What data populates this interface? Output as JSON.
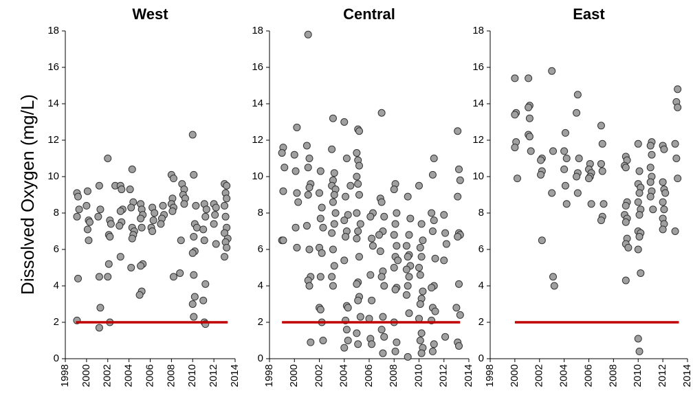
{
  "chart_data": [
    {
      "type": "scatter",
      "title": "West",
      "ylabel": "Dissolved Oxygen  (mg/L)",
      "xlim": [
        1998,
        2014
      ],
      "xticks": [
        1998,
        2000,
        2002,
        2004,
        2006,
        2008,
        2010,
        2012,
        2014
      ],
      "ylim": [
        0,
        18
      ],
      "yticks": [
        0,
        2,
        4,
        6,
        8,
        10,
        12,
        14,
        16,
        18
      ],
      "series": [
        {
          "type": "scatter",
          "color": "#a0a0a0",
          "x": [
            1999.1,
            1999.2,
            1999.1,
            1999.3,
            1999.2,
            1999.1,
            2000.1,
            2000.0,
            2000.2,
            2000.3,
            2000.1,
            2000.2,
            2001.2,
            2001.3,
            2001.1,
            2001.2,
            2001.3,
            2001.2,
            2002.0,
            2002.7,
            2002.2,
            2002.3,
            2002.1,
            2002.2,
            2002.1,
            2002.0,
            2002.2,
            2003.2,
            2003.3,
            2003.4,
            2003.2,
            2003.3,
            2003.1,
            2003.2,
            2004.3,
            2004.1,
            2004.4,
            2004.2,
            2004.3,
            2004.5,
            2004.4,
            2004.3,
            2004.2,
            2005.1,
            2005.2,
            2005.3,
            2005.1,
            2005.2,
            2005.3,
            2005.1,
            2005.2,
            2005.0,
            2006.2,
            2006.4,
            2006.3,
            2006.1,
            2006.2,
            2007.2,
            2007.3,
            2007.1,
            2007.0,
            2008.0,
            2008.2,
            2008.1,
            2008.0,
            2008.2,
            2008.1,
            2008.2,
            2009.0,
            2009.2,
            2009.1,
            2009.3,
            2009.2,
            2008.9,
            2008.8,
            2010.0,
            2010.1,
            2010.3,
            2010.2,
            2010.4,
            2010.1,
            2010.2,
            2010.0,
            2010.1,
            2010.2,
            2010.0,
            2010.1,
            2011.1,
            2011.3,
            2011.2,
            2011.0,
            2011.1,
            2011.2,
            2011.0,
            2011.1,
            2011.2,
            2012.0,
            2012.2,
            2012.1,
            2012.0,
            2012.2,
            2013.0,
            2013.2,
            2013.1,
            2013.2,
            2013.0,
            2013.1,
            2013.2,
            2013.0,
            2013.3,
            2013.1,
            2013.2,
            2013.0
          ],
          "y": [
            9.1,
            8.9,
            7.8,
            8.2,
            4.4,
            2.1,
            9.2,
            8.4,
            7.6,
            7.5,
            7.1,
            6.5,
            9.5,
            8.2,
            7.8,
            4.5,
            2.8,
            1.7,
            11.0,
            9.5,
            7.6,
            7.4,
            6.8,
            6.7,
            5.2,
            4.5,
            2.0,
            9.5,
            9.3,
            8.2,
            8.1,
            7.5,
            7.3,
            5.6,
            10.4,
            9.3,
            8.6,
            8.3,
            7.2,
            7.0,
            6.8,
            6.6,
            5.0,
            8.5,
            8.2,
            7.9,
            7.7,
            7.2,
            5.2,
            5.1,
            3.7,
            3.5,
            8.3,
            8.0,
            7.6,
            7.2,
            7.0,
            8.4,
            7.9,
            7.7,
            7.4,
            10.1,
            9.9,
            8.8,
            8.5,
            8.3,
            8.1,
            4.5,
            9.6,
            9.3,
            9.0,
            8.8,
            8.5,
            6.5,
            4.7,
            12.3,
            10.1,
            8.4,
            7.4,
            7.2,
            6.7,
            5.9,
            5.8,
            4.6,
            3.4,
            3.0,
            2.3,
            8.5,
            8.2,
            7.8,
            7.1,
            6.5,
            4.1,
            3.2,
            2.0,
            1.9,
            8.5,
            8.3,
            7.9,
            7.4,
            6.3,
            9.6,
            9.5,
            9.1,
            8.8,
            8.4,
            7.8,
            7.2,
            6.9,
            6.6,
            6.4,
            6.1,
            5.6
          ]
        },
        {
          "type": "line",
          "color": "#c00000",
          "x": [
            1999,
            2013.3
          ],
          "y": [
            2,
            2
          ]
        }
      ]
    },
    {
      "type": "scatter",
      "title": "Central",
      "xlim": [
        1998,
        2014
      ],
      "xticks": [
        1998,
        2000,
        2002,
        2004,
        2006,
        2008,
        2010,
        2012,
        2014
      ],
      "ylim": [
        0,
        18
      ],
      "yticks": [
        0,
        2,
        4,
        6,
        8,
        10,
        12,
        14,
        16,
        18
      ],
      "series": [
        {
          "type": "scatter",
          "color": "#a0a0a0",
          "x": [
            1999.1,
            1999.0,
            1999.2,
            1999.1,
            1999.0,
            1999.1,
            2000.2,
            2000.0,
            2000.1,
            2000.2,
            2000.3,
            2000.1,
            2000.2,
            2001.1,
            2001.0,
            2001.2,
            2001.1,
            2001.3,
            2001.2,
            2001.1,
            2001.0,
            2001.2,
            2001.3,
            2001.1,
            2001.2,
            2001.3,
            2002.1,
            2002.0,
            2002.2,
            2002.1,
            2002.3,
            2002.0,
            2002.2,
            2002.1,
            2002.0,
            2002.1,
            2002.2,
            2002.3,
            2003.1,
            2003.0,
            2003.2,
            2003.1,
            2003.0,
            2003.3,
            2003.2,
            2003.1,
            2003.3,
            2003.2,
            2003.0,
            2003.1,
            2003.2,
            2003.0,
            2003.1,
            2004.0,
            2004.2,
            2004.5,
            2004.1,
            2004.3,
            2004.0,
            2004.2,
            2004.1,
            2004.0,
            2004.2,
            2004.3,
            2004.1,
            2004.2,
            2004.3,
            2004.0,
            2005.1,
            2005.2,
            2005.0,
            2005.1,
            2005.2,
            2005.0,
            2005.1,
            2005.2,
            2005.0,
            2005.3,
            2005.1,
            2005.0,
            2005.2,
            2005.1,
            2005.0,
            2005.2,
            2005.1,
            2005.3,
            2005.0,
            2005.1,
            2006.3,
            2006.1,
            2006.2,
            2006.3,
            2006.1,
            2006.2,
            2006.0,
            2006.1,
            2006.2,
            2007.0,
            2006.9,
            2007.0,
            2007.2,
            2007.1,
            2006.8,
            2006.9,
            2007.1,
            2007.0,
            2007.2,
            2007.1,
            2007.0,
            2007.2,
            2007.1,
            2008.1,
            2008.0,
            2008.2,
            2008.1,
            2008.0,
            2008.2,
            2008.1,
            2008.3,
            2008.0,
            2008.2,
            2008.1,
            2008.0,
            2008.2,
            2008.1,
            2009.1,
            2009.3,
            2009.2,
            2009.0,
            2009.2,
            2009.1,
            2009.3,
            2009.0,
            2009.2,
            2009.1,
            2009.0,
            2009.2,
            2009.1,
            2010.0,
            2010.2,
            2010.3,
            2010.1,
            2010.2,
            2010.0,
            2010.1,
            2010.3,
            2010.2,
            2010.1,
            2010.0,
            2010.2,
            2010.1,
            2010.3,
            2010.2,
            2011.2,
            2011.1,
            2011.0,
            2011.2,
            2011.1,
            2011.3,
            2011.2,
            2011.0,
            2011.1,
            2011.3,
            2011.0,
            2011.2,
            2011.1,
            2012.0,
            2012.1,
            2012.2,
            2012.0,
            2012.1,
            2013.1,
            2013.2,
            2013.3,
            2013.1,
            2013.2,
            2013.3,
            2013.1,
            2013.2,
            2013.0,
            2013.3,
            2013.1,
            2013.2
          ],
          "y": [
            11.6,
            11.3,
            10.5,
            9.2,
            6.5,
            6.5,
            12.7,
            11.2,
            10.3,
            9.1,
            8.6,
            7.2,
            6.1,
            17.8,
            11.7,
            11.0,
            10.5,
            9.6,
            9.4,
            9.0,
            7.3,
            6.0,
            4.5,
            4.3,
            4.0,
            0.9,
            10.3,
            9.1,
            8.3,
            7.7,
            7.2,
            6.1,
            5.8,
            4.5,
            2.8,
            2.7,
            2.0,
            1.0,
            13.2,
            11.5,
            10.2,
            9.8,
            9.5,
            9.3,
            9.0,
            8.6,
            8.0,
            7.4,
            6.9,
            6.0,
            5.1,
            4.5,
            4.0,
            13.0,
            11.0,
            9.5,
            8.9,
            7.9,
            7.6,
            7.0,
            6.7,
            5.4,
            2.9,
            2.8,
            2.1,
            1.6,
            1.0,
            0.6,
            12.6,
            12.5,
            11.3,
            10.9,
            10.6,
            10.0,
            9.6,
            9.0,
            8.0,
            7.4,
            7.0,
            6.6,
            5.6,
            4.2,
            4.1,
            3.4,
            3.2,
            2.3,
            1.4,
            0.8,
            8.0,
            7.8,
            6.6,
            6.2,
            4.6,
            3.2,
            2.2,
            1.1,
            0.8,
            13.5,
            8.8,
            8.6,
            7.8,
            7.0,
            6.8,
            5.9,
            4.8,
            4.5,
            4.0,
            2.3,
            1.6,
            1.2,
            0.3,
            9.6,
            9.3,
            8.0,
            7.4,
            6.8,
            6.2,
            5.6,
            5.4,
            5.0,
            3.9,
            3.8,
            2.0,
            0.9,
            0.4,
            8.9,
            7.7,
            6.8,
            6.2,
            5.7,
            5.6,
            5.1,
            4.9,
            4.5,
            4.0,
            3.5,
            2.5,
            0.1,
            9.5,
            7.4,
            6.5,
            6.1,
            5.6,
            5.0,
            4.6,
            3.7,
            3.3,
            3.0,
            2.2,
            1.4,
            1.0,
            0.6,
            0.3,
            11.0,
            10.1,
            8.0,
            7.6,
            7.0,
            5.5,
            4.0,
            3.9,
            2.8,
            2.6,
            2.1,
            0.8,
            0.4,
            7.9,
            6.9,
            6.3,
            5.4,
            1.2,
            12.5,
            10.4,
            9.8,
            8.9,
            6.9,
            6.8,
            6.7,
            4.1,
            2.8,
            2.4,
            0.9,
            0.7
          ]
        },
        {
          "type": "line",
          "color": "#c00000",
          "x": [
            1999,
            2013.3
          ],
          "y": [
            2,
            2
          ]
        }
      ]
    },
    {
      "type": "scatter",
      "title": "East",
      "xlim": [
        1998,
        2014
      ],
      "xticks": [
        1998,
        2000,
        2002,
        2004,
        2006,
        2008,
        2010,
        2012,
        2014
      ],
      "ylim": [
        0,
        18
      ],
      "yticks": [
        0,
        2,
        4,
        6,
        8,
        10,
        12,
        14,
        16,
        18
      ],
      "series": [
        {
          "type": "scatter",
          "color": "#a0a0a0",
          "x": [
            2000.0,
            2000.1,
            2000.0,
            2000.1,
            2000.0,
            2000.2,
            2001.1,
            2001.2,
            2001.1,
            2001.2,
            2001.1,
            2001.2,
            2001.3,
            2002.2,
            2002.1,
            2002.2,
            2002.1,
            2002.2,
            2003.0,
            2003.1,
            2003.0,
            2003.1,
            2003.2,
            2004.1,
            2004.0,
            2004.2,
            2004.0,
            2004.1,
            2004.2,
            2005.1,
            2005.0,
            2005.2,
            2005.1,
            2005.0,
            2005.1,
            2006.1,
            2006.0,
            2006.2,
            2006.1,
            2006.0,
            2006.2,
            2007.0,
            2007.1,
            2007.0,
            2007.1,
            2007.2,
            2007.1,
            2007.0,
            2009.0,
            2009.1,
            2008.9,
            2009.0,
            2009.1,
            2009.0,
            2008.9,
            2009.1,
            2009.0,
            2009.1,
            2009.0,
            2009.2,
            2009.0,
            2010.0,
            2010.1,
            2010.0,
            2010.2,
            2010.1,
            2010.0,
            2010.2,
            2010.1,
            2010.0,
            2010.2,
            2010.1,
            2010.0,
            2010.2,
            2010.0,
            2010.1,
            2011.1,
            2011.0,
            2011.1,
            2011.0,
            2011.1,
            2011.0,
            2011.1,
            2011.0,
            2011.2,
            2012.0,
            2012.1,
            2012.0,
            2012.1,
            2012.2,
            2012.0,
            2012.1,
            2012.0,
            2012.1,
            2012.0,
            2013.2,
            2013.1,
            2013.2,
            2013.0,
            2013.1,
            2013.2,
            2013.0
          ],
          "y": [
            15.4,
            13.5,
            13.4,
            11.9,
            11.6,
            9.9,
            15.4,
            13.9,
            13.8,
            13.2,
            12.3,
            12.2,
            11.4,
            11.0,
            10.9,
            10.3,
            10.1,
            6.5,
            15.8,
            11.4,
            9.1,
            4.5,
            4.0,
            12.4,
            11.4,
            11.0,
            10.4,
            9.5,
            8.5,
            14.5,
            13.5,
            11.0,
            10.2,
            10.0,
            9.1,
            10.7,
            10.4,
            10.2,
            10.0,
            9.9,
            8.5,
            12.8,
            11.8,
            10.7,
            10.3,
            8.5,
            7.8,
            7.6,
            11.1,
            10.9,
            10.6,
            10.5,
            8.6,
            8.4,
            7.9,
            7.7,
            7.5,
            6.6,
            6.3,
            6.1,
            4.3,
            11.8,
            10.3,
            9.6,
            9.4,
            9.1,
            8.6,
            8.2,
            7.9,
            7.0,
            6.9,
            6.7,
            6.0,
            4.7,
            1.1,
            0.4,
            11.9,
            11.7,
            11.2,
            10.5,
            10.0,
            9.7,
            9.2,
            8.9,
            8.2,
            11.7,
            11.5,
            9.7,
            9.3,
            9.1,
            8.6,
            8.2,
            7.7,
            7.4,
            7.1,
            14.8,
            14.1,
            13.8,
            11.8,
            11.0,
            9.9,
            7.0
          ]
        },
        {
          "type": "line",
          "color": "#c00000",
          "x": [
            2000,
            2013.3
          ],
          "y": [
            2,
            2
          ]
        }
      ]
    }
  ]
}
